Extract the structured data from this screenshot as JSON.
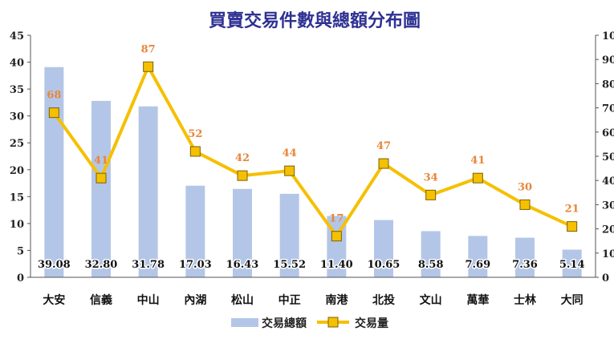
{
  "chart_data": {
    "type": "bar+line",
    "title": "買賣交易件數與總額分布圖",
    "categories": [
      "大安",
      "信義",
      "中山",
      "內湖",
      "松山",
      "中正",
      "南港",
      "北投",
      "文山",
      "萬華",
      "士林",
      "大同"
    ],
    "series": [
      {
        "name": "交易總額",
        "type": "bar",
        "axis": "left",
        "values": [
          39.08,
          32.8,
          31.78,
          17.03,
          16.43,
          15.52,
          11.4,
          10.65,
          8.58,
          7.69,
          7.36,
          5.14
        ],
        "labels": [
          "39.08",
          "32.80",
          "31.78",
          "17.03",
          "16.43",
          "15.52",
          "11.40",
          "10.65",
          "8.58",
          "7.69",
          "7.36",
          "5.14"
        ],
        "color": "#b4c6e7"
      },
      {
        "name": "交易量",
        "type": "line",
        "axis": "right",
        "values": [
          68,
          41,
          87,
          52,
          42,
          44,
          17,
          47,
          34,
          41,
          30,
          21
        ],
        "labels": [
          "68",
          "41",
          "87",
          "52",
          "42",
          "44",
          "17",
          "47",
          "34",
          "41",
          "30",
          "21"
        ],
        "color": "#f5c000",
        "label_color": "#e8863a"
      }
    ],
    "y_left": {
      "range": [
        0,
        45
      ],
      "ticks": [
        "0",
        "5",
        "10",
        "15",
        "20",
        "25",
        "30",
        "35",
        "40",
        "45"
      ]
    },
    "y_right": {
      "range": [
        0,
        100
      ],
      "ticks": [
        "0",
        "10",
        "20",
        "30",
        "40",
        "50",
        "60",
        "70",
        "80",
        "90",
        "100"
      ]
    },
    "grid": false,
    "legend_position": "bottom",
    "title_color": "#2e3192"
  }
}
